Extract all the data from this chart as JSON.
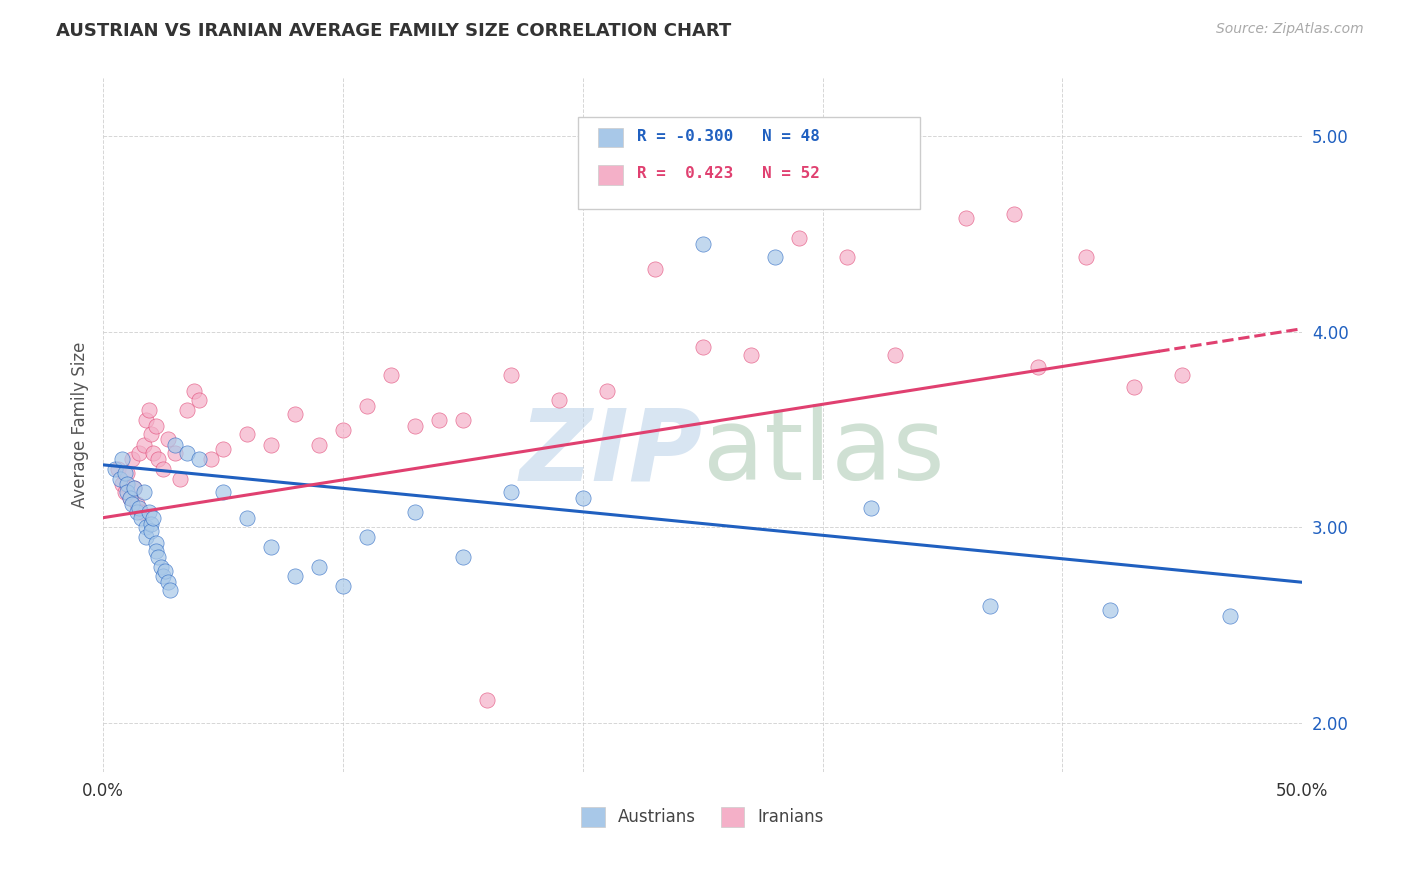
{
  "title": "AUSTRIAN VS IRANIAN AVERAGE FAMILY SIZE CORRELATION CHART",
  "source": "Source: ZipAtlas.com",
  "ylabel": "Average Family Size",
  "yticks": [
    2.0,
    3.0,
    4.0,
    5.0
  ],
  "xlim": [
    0.0,
    0.5
  ],
  "ylim": [
    1.75,
    5.3
  ],
  "color_austrians": "#a8c8e8",
  "color_iranians": "#f4b0c8",
  "color_line_austrians": "#2060c0",
  "color_line_iranians": "#e04070",
  "austrians_x": [
    0.005,
    0.007,
    0.008,
    0.009,
    0.01,
    0.01,
    0.011,
    0.012,
    0.013,
    0.014,
    0.015,
    0.016,
    0.017,
    0.018,
    0.018,
    0.019,
    0.02,
    0.02,
    0.021,
    0.022,
    0.022,
    0.023,
    0.024,
    0.025,
    0.026,
    0.027,
    0.028,
    0.03,
    0.035,
    0.04,
    0.05,
    0.06,
    0.07,
    0.08,
    0.09,
    0.1,
    0.11,
    0.13,
    0.15,
    0.17,
    0.2,
    0.22,
    0.25,
    0.28,
    0.32,
    0.37,
    0.42,
    0.47
  ],
  "austrians_y": [
    3.3,
    3.25,
    3.35,
    3.28,
    3.22,
    3.18,
    3.15,
    3.12,
    3.2,
    3.08,
    3.1,
    3.05,
    3.18,
    3.0,
    2.95,
    3.08,
    3.02,
    2.98,
    3.05,
    2.92,
    2.88,
    2.85,
    2.8,
    2.75,
    2.78,
    2.72,
    2.68,
    3.42,
    3.38,
    3.35,
    3.18,
    3.05,
    2.9,
    2.75,
    2.8,
    2.7,
    2.95,
    3.08,
    2.85,
    3.18,
    3.15,
    4.72,
    4.45,
    4.38,
    3.1,
    2.6,
    2.58,
    2.55
  ],
  "iranians_x": [
    0.006,
    0.008,
    0.009,
    0.01,
    0.011,
    0.012,
    0.013,
    0.014,
    0.015,
    0.016,
    0.017,
    0.018,
    0.019,
    0.02,
    0.021,
    0.022,
    0.023,
    0.025,
    0.027,
    0.03,
    0.032,
    0.035,
    0.038,
    0.04,
    0.045,
    0.05,
    0.06,
    0.07,
    0.08,
    0.09,
    0.1,
    0.11,
    0.12,
    0.13,
    0.14,
    0.15,
    0.17,
    0.19,
    0.21,
    0.23,
    0.25,
    0.27,
    0.29,
    0.31,
    0.33,
    0.36,
    0.39,
    0.41,
    0.43,
    0.45,
    0.38,
    0.16
  ],
  "iranians_y": [
    3.3,
    3.22,
    3.18,
    3.28,
    3.15,
    3.35,
    3.2,
    3.12,
    3.38,
    3.08,
    3.42,
    3.55,
    3.6,
    3.48,
    3.38,
    3.52,
    3.35,
    3.3,
    3.45,
    3.38,
    3.25,
    3.6,
    3.7,
    3.65,
    3.35,
    3.4,
    3.48,
    3.42,
    3.58,
    3.42,
    3.5,
    3.62,
    3.78,
    3.52,
    3.55,
    3.55,
    3.78,
    3.65,
    3.7,
    4.32,
    3.92,
    3.88,
    4.48,
    4.38,
    3.88,
    4.58,
    3.82,
    4.38,
    3.72,
    3.78,
    4.6,
    2.12
  ]
}
